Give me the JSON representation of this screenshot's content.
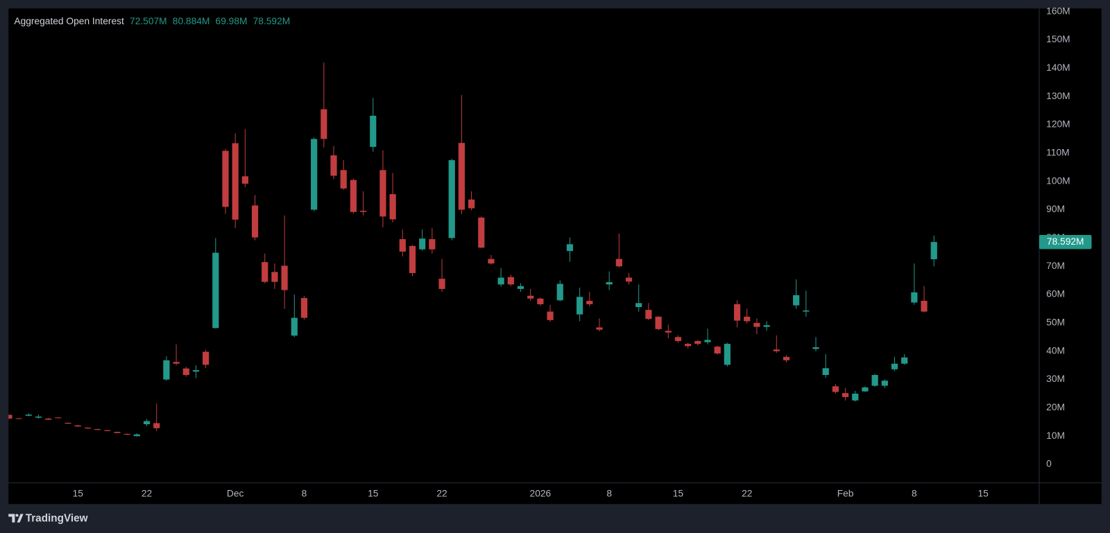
{
  "brand": "TradingView",
  "chart_data": {
    "type": "candlestick",
    "categories": [
      null,
      null,
      null,
      null,
      null,
      null,
      null,
      "15",
      null,
      null,
      null,
      null,
      null,
      null,
      "22",
      null,
      null,
      null,
      null,
      null,
      null,
      null,
      null,
      "Dec",
      null,
      null,
      null,
      null,
      null,
      null,
      "8",
      null,
      null,
      null,
      null,
      null,
      null,
      "15",
      null,
      null,
      null,
      null,
      null,
      null,
      "22",
      null,
      null,
      null,
      null,
      null,
      null,
      null,
      null,
      null,
      "2026",
      null,
      null,
      null,
      null,
      null,
      null,
      "8",
      null,
      null,
      null,
      null,
      null,
      null,
      "15",
      null,
      null,
      null,
      null,
      null,
      null,
      "22",
      null,
      null,
      null,
      null,
      null,
      null,
      null,
      null,
      null,
      "Feb",
      null,
      null,
      null,
      null,
      null,
      null,
      "8",
      null,
      null,
      null,
      null,
      null,
      null,
      "15",
      null,
      null,
      null,
      null,
      null
    ],
    "series": [
      {
        "name": "Aggregated Open Interest",
        "up_color": "#22998a",
        "down_color": "#c13d3f",
        "open": [
          17.5,
          16.3,
          17.2,
          16.5,
          16.2,
          16.6,
          14.7,
          13.8,
          13,
          12.5,
          12.1,
          11.5,
          10.8,
          10,
          14.2,
          14.6,
          30,
          36.2,
          33.9,
          32.8,
          39.8,
          48.2,
          110.8,
          113.5,
          101.8,
          91.5,
          71.5,
          68,
          70.2,
          45.5,
          58.8,
          90,
          125.5,
          109.2,
          104,
          100.5,
          89.6,
          112.2,
          104,
          95.5,
          79.6,
          77.2,
          76,
          79.6,
          65.6,
          80,
          113.6,
          93.6,
          87.2,
          72.6,
          63.6,
          66.2,
          62,
          59.6,
          58.6,
          54,
          58,
          75.4,
          53,
          57.8,
          48.4,
          63.6,
          72.6,
          66,
          55.6,
          54.6,
          52.2,
          47.2,
          45,
          42.6,
          43.6,
          43.2,
          41.6,
          35.2,
          56.6,
          52.2,
          50,
          48.6,
          40.6,
          38,
          56.2,
          54,
          40.8,
          31.6,
          27.6,
          25.2,
          22.6,
          25.8,
          27.8,
          27.8,
          33.6,
          35.6,
          57.2,
          57.8,
          72.507,
          null,
          null,
          null,
          null,
          null,
          null,
          null,
          null,
          null,
          null
        ],
        "high": [
          17.6,
          16.4,
          18,
          17.6,
          16.4,
          16.7,
          14.8,
          13.9,
          13.1,
          12.6,
          12.2,
          11.6,
          10.9,
          11,
          16,
          21.5,
          38.2,
          42.4,
          34.5,
          35,
          40.5,
          80,
          111.5,
          117,
          118.5,
          95.2,
          74.5,
          71,
          88,
          60,
          59.5,
          115.5,
          142,
          112.5,
          107.5,
          101,
          96.5,
          129.5,
          111,
          103,
          83,
          77.5,
          83,
          83.5,
          72.6,
          108,
          130.5,
          96.5,
          87.6,
          74,
          69.4,
          67,
          64,
          62,
          59,
          56.4,
          65,
          80.2,
          62.5,
          61,
          51.6,
          68.2,
          81.6,
          67.6,
          63.6,
          57,
          52.4,
          49.4,
          45.6,
          43,
          44,
          48,
          42,
          43,
          58,
          55,
          51.6,
          50.6,
          45.6,
          38.6,
          65.4,
          61.4,
          45,
          39,
          28.4,
          27,
          26,
          27.6,
          32,
          30,
          38,
          39,
          71,
          63,
          80.884,
          null,
          null,
          null,
          null,
          null,
          null,
          null,
          null,
          null,
          null
        ],
        "low": [
          16,
          16,
          17,
          16.2,
          15.7,
          16.3,
          14.3,
          13.3,
          12.6,
          12.1,
          11.7,
          11,
          10.4,
          9.8,
          13.5,
          11.8,
          29.6,
          35,
          31,
          30.5,
          34,
          48,
          88.5,
          83.5,
          98,
          79.2,
          64,
          62,
          55,
          45,
          51.2,
          89.5,
          112,
          100.8,
          97,
          88.6,
          88,
          110.5,
          83.8,
          85.5,
          73.5,
          66.5,
          75.5,
          74.5,
          61,
          79.2,
          88.4,
          89.8,
          76.4,
          70.6,
          62.8,
          63,
          61,
          57.8,
          56,
          50.4,
          57.6,
          71.6,
          50.6,
          55.8,
          47,
          61.6,
          69.6,
          63.6,
          54,
          51,
          47.4,
          44.6,
          43,
          41,
          42,
          42.4,
          38.8,
          34.6,
          48.4,
          49.8,
          46,
          47.2,
          39.4,
          36,
          55,
          52.2,
          40,
          30.6,
          25,
          22.6,
          22.2,
          25.6,
          27.4,
          27,
          33,
          35.2,
          56.4,
          53.8,
          69.98,
          null,
          null,
          null,
          null,
          null,
          null,
          null,
          null,
          null,
          null
        ],
        "close": [
          16.2,
          16.1,
          17.6,
          16.9,
          15.8,
          16.4,
          14.4,
          13.4,
          12.7,
          12.2,
          11.8,
          11.1,
          10.5,
          10.6,
          15.3,
          12.8,
          36.8,
          35.6,
          31.6,
          33.3,
          35.2,
          74.8,
          91,
          86.5,
          99.2,
          80.2,
          64.5,
          64.5,
          61.6,
          51.8,
          51.8,
          115,
          115,
          102,
          97.5,
          89.2,
          89.2,
          123.2,
          87.6,
          86.6,
          75.2,
          67.6,
          79.8,
          76,
          62,
          107.5,
          90,
          90.5,
          76.6,
          71,
          66,
          63.6,
          63,
          58.6,
          56.6,
          51,
          63.8,
          77.8,
          59.2,
          56.6,
          47.6,
          64.4,
          70,
          64.6,
          57,
          51.4,
          47.8,
          46.6,
          43.6,
          41.8,
          42.6,
          44,
          39.2,
          42.6,
          50.8,
          50.6,
          48.6,
          49.2,
          40,
          36.8,
          59.8,
          54.4,
          41.4,
          34,
          25.6,
          23.8,
          25,
          27.2,
          31.6,
          29.6,
          35.6,
          37.8,
          60.8,
          54,
          78.592,
          null,
          null,
          null,
          null,
          null,
          null,
          null,
          null,
          null,
          null
        ],
        "last_value_labels": [
          "72.507M",
          "80.884M",
          "69.98M",
          "78.592M"
        ]
      }
    ],
    "ylim": [
      -6.5,
      161.1
    ],
    "yticks": [
      {
        "value": 0,
        "label": "0"
      },
      {
        "value": 10,
        "label": "10M"
      },
      {
        "value": 20,
        "label": "20M"
      },
      {
        "value": 30,
        "label": "30M"
      },
      {
        "value": 40,
        "label": "40M"
      },
      {
        "value": 50,
        "label": "50M"
      },
      {
        "value": 60,
        "label": "60M"
      },
      {
        "value": 70,
        "label": "70M"
      },
      {
        "value": 80,
        "label": "80M"
      },
      {
        "value": 90,
        "label": "90M"
      },
      {
        "value": 100,
        "label": "100M"
      },
      {
        "value": 110,
        "label": "110M"
      },
      {
        "value": 120,
        "label": "120M"
      },
      {
        "value": 130,
        "label": "130M"
      },
      {
        "value": 140,
        "label": "140M"
      },
      {
        "value": 150,
        "label": "150M"
      },
      {
        "value": 160,
        "label": "160M"
      }
    ],
    "grid": false
  }
}
